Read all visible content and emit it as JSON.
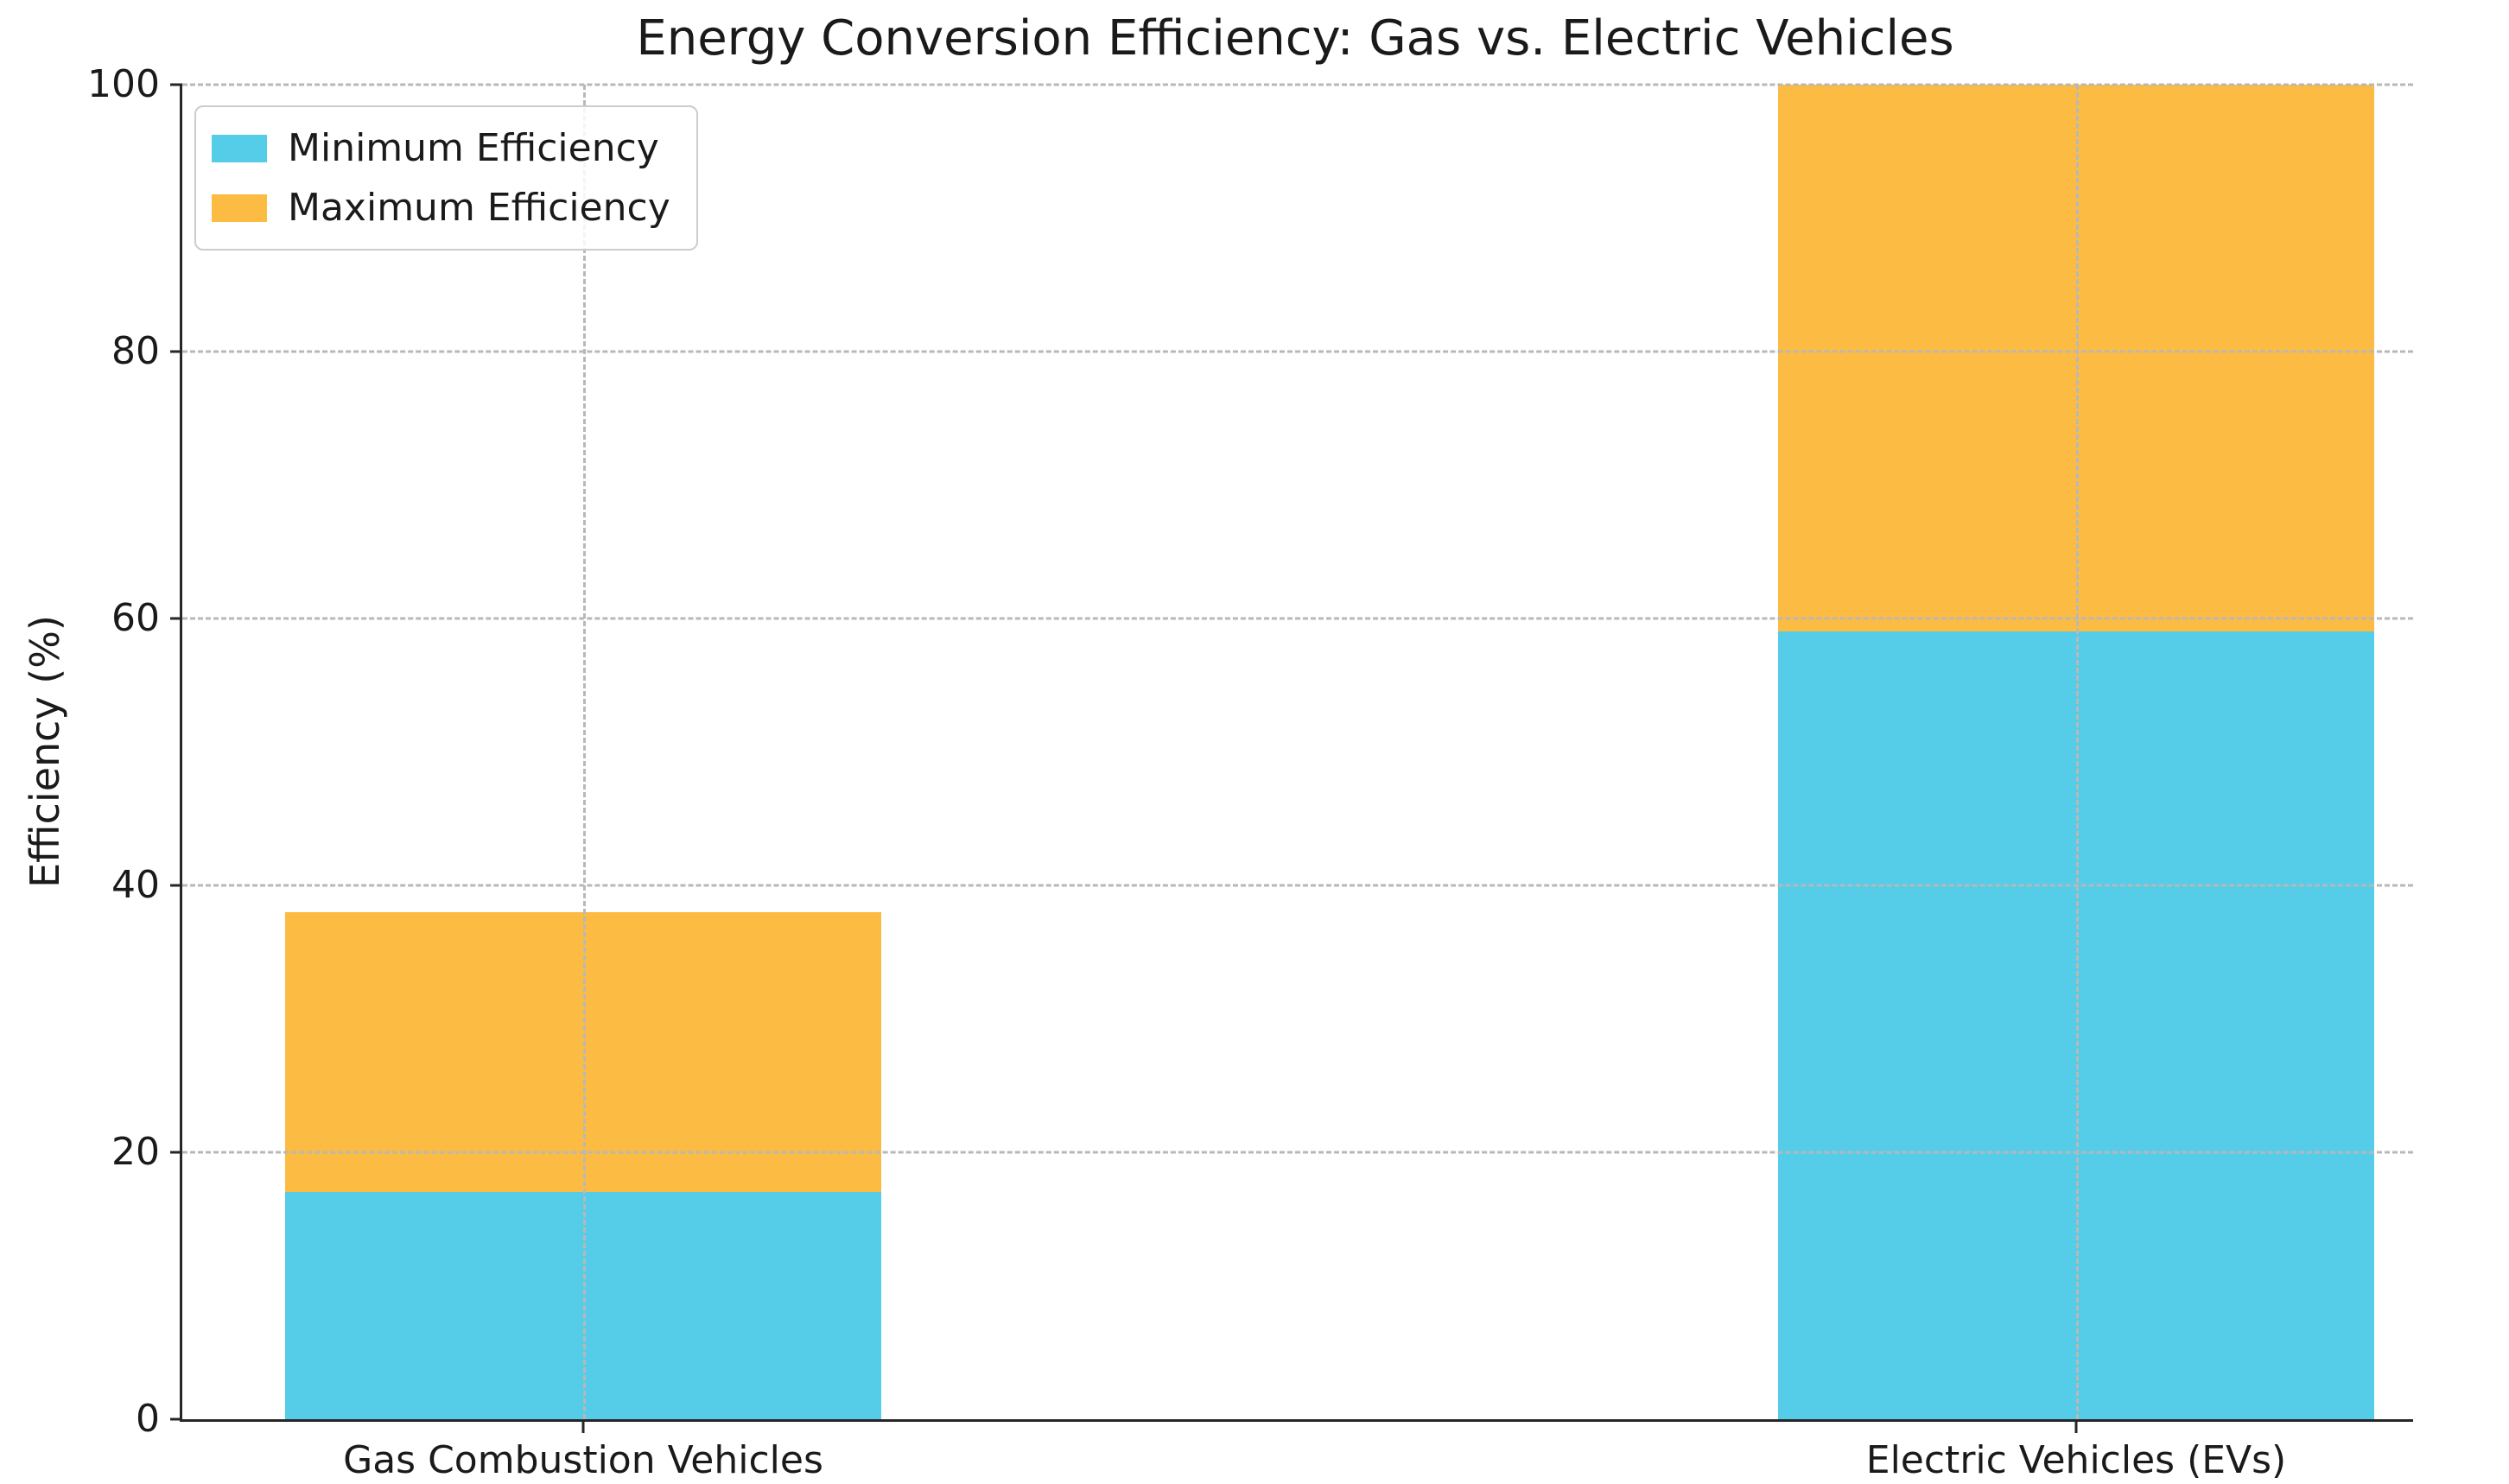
{
  "chart_data": {
    "type": "bar",
    "stacked": true,
    "title": "Energy Conversion Efficiency: Gas vs. Electric Vehicles",
    "ylabel": "Efficiency (%)",
    "xlabel": "",
    "categories": [
      "Gas Combustion Vehicles",
      "Electric Vehicles (EVs)"
    ],
    "series": [
      {
        "name": "Minimum Efficiency",
        "color": "#55CDE9",
        "values": [
          17,
          59
        ]
      },
      {
        "name": "Maximum Efficiency",
        "color": "#FCBB43",
        "values": [
          21,
          41
        ]
      }
    ],
    "stack_totals": [
      38,
      100
    ],
    "segment_boundaries": {
      "gas": [
        0,
        17,
        38
      ],
      "ev": [
        0,
        59,
        100
      ]
    },
    "ylim": [
      0,
      100
    ],
    "yticks": [
      "0",
      "20",
      "40",
      "60",
      "80",
      "100"
    ],
    "grid": {
      "style": "dashed",
      "color": "#b8b8b8",
      "axes": "both",
      "drawn_above_bars": true
    },
    "legend": {
      "position": "upper-left",
      "entries": [
        "Minimum Efficiency",
        "Maximum Efficiency"
      ]
    },
    "axis_color": "#262626",
    "background_color": "#ffffff"
  }
}
